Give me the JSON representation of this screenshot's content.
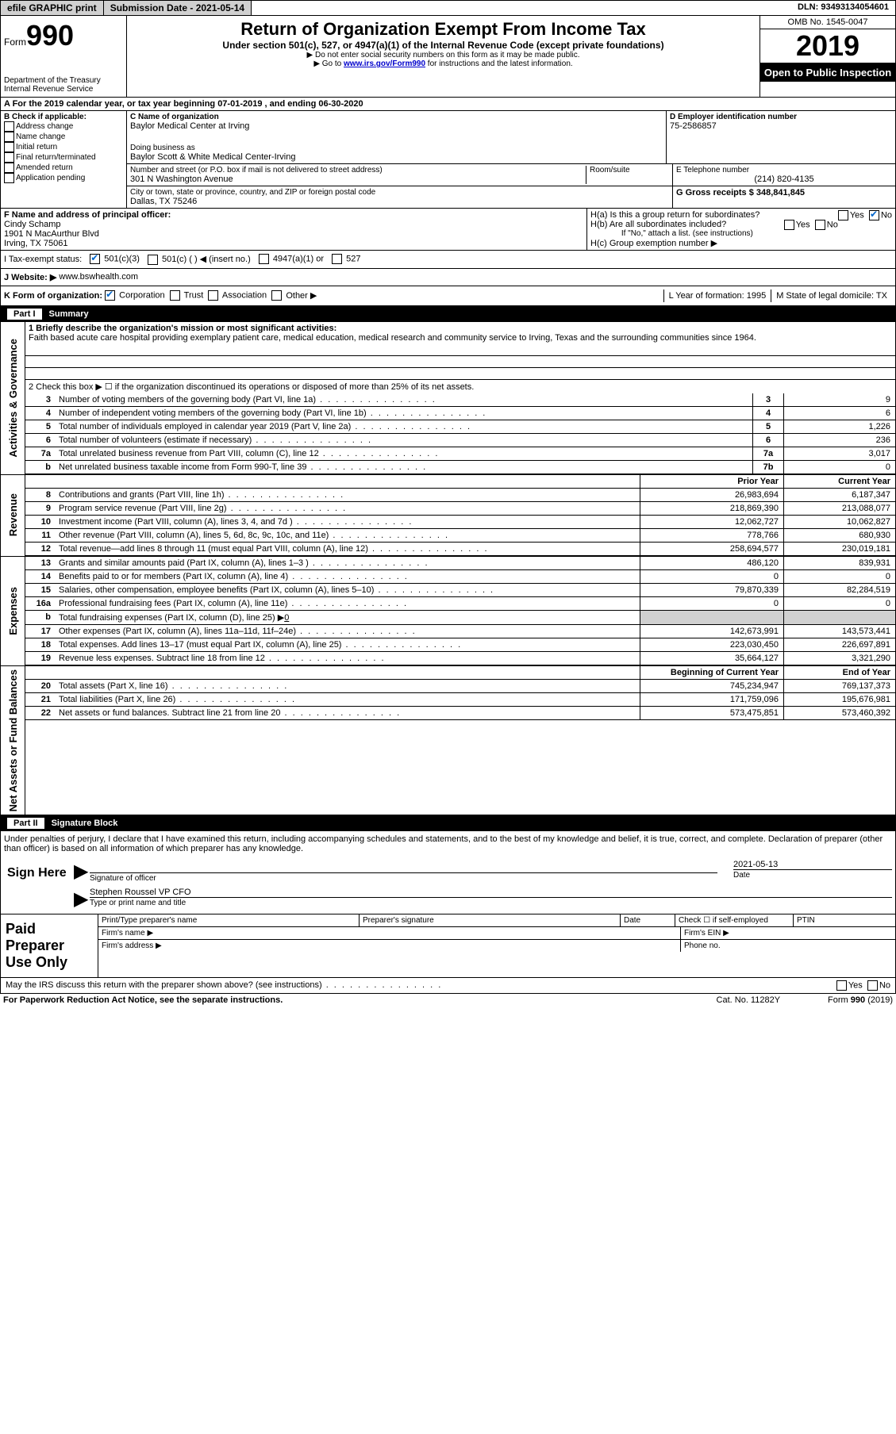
{
  "topbar": {
    "efile": "efile GRAPHIC print",
    "submission": "Submission Date - 2021-05-14",
    "dln": "DLN: 93493134054601"
  },
  "header": {
    "form_label": "Form",
    "form_number": "990",
    "dept1": "Department of the Treasury",
    "dept2": "Internal Revenue Service",
    "title": "Return of Organization Exempt From Income Tax",
    "subtitle": "Under section 501(c), 527, or 4947(a)(1) of the Internal Revenue Code (except private foundations)",
    "note1": "▶ Do not enter social security numbers on this form as it may be made public.",
    "note2_pre": "▶ Go to ",
    "note2_link": "www.irs.gov/Form990",
    "note2_post": " for instructions and the latest information.",
    "omb": "OMB No. 1545-0047",
    "year": "2019",
    "open": "Open to Public Inspection"
  },
  "line_a": "A For the 2019 calendar year, or tax year beginning 07-01-2019    , and ending 06-30-2020",
  "col_b": {
    "label": "B Check if applicable:",
    "items": [
      "Address change",
      "Name change",
      "Initial return",
      "Final return/terminated",
      "Amended return",
      "Application pending"
    ]
  },
  "col_c": {
    "label_c": "C Name of organization",
    "org_name": "Baylor Medical Center at Irving",
    "dba_label": "Doing business as",
    "dba": "Baylor Scott & White Medical Center-Irving",
    "addr_label": "Number and street (or P.O. box if mail is not delivered to street address)",
    "room_label": "Room/suite",
    "street": "301 N Washington Avenue",
    "city_label": "City or town, state or province, country, and ZIP or foreign postal code",
    "city": "Dallas, TX  75246"
  },
  "col_d": {
    "label": "D Employer identification number",
    "ein": "75-2586857"
  },
  "col_e": {
    "label": "E Telephone number",
    "phone": "(214) 820-4135"
  },
  "col_g": {
    "label": "G Gross receipts $ 348,841,845"
  },
  "col_f": {
    "label": "F  Name and address of principal officer:",
    "name": "Cindy Schamp",
    "addr1": "1901 N MacAurthur Blvd",
    "addr2": "Irving, TX  75061"
  },
  "col_h": {
    "ha": "H(a)  Is this a group return for subordinates?",
    "hb": "H(b)  Are all subordinates included?",
    "hb_note": "If \"No,\" attach a list. (see instructions)",
    "hc": "H(c)  Group exemption number ▶",
    "yes": "Yes",
    "no": "No"
  },
  "tax_status": {
    "label": "I   Tax-exempt status:",
    "opt1": "501(c)(3)",
    "opt2": "501(c) (  ) ◀ (insert no.)",
    "opt3": "4947(a)(1) or",
    "opt4": "527"
  },
  "website": {
    "label": "J   Website: ▶",
    "url": "www.bswhealth.com"
  },
  "korg": {
    "label": "K Form of organization:",
    "opts": [
      "Corporation",
      "Trust",
      "Association",
      "Other ▶"
    ],
    "l_label": "L Year of formation: 1995",
    "m_label": "M State of legal domicile: TX"
  },
  "part1": {
    "title": "Part I",
    "name": "Summary",
    "line1_label": "1  Briefly describe the organization's mission or most significant activities:",
    "mission": "Faith based acute care hospital providing exemplary patient care, medical education, medical research and community service to Irving, Texas and the surrounding communities since 1964.",
    "line2": "2    Check this box ▶ ☐  if the organization discontinued its operations or disposed of more than 25% of its net assets.",
    "sidebar_act": "Activities & Governance",
    "sidebar_rev": "Revenue",
    "sidebar_exp": "Expenses",
    "sidebar_net": "Net Assets or Fund Balances"
  },
  "gov_rows": [
    {
      "n": "3",
      "t": "Number of voting members of the governing body (Part VI, line 1a)",
      "box": "3",
      "v": "9"
    },
    {
      "n": "4",
      "t": "Number of independent voting members of the governing body (Part VI, line 1b)",
      "box": "4",
      "v": "6"
    },
    {
      "n": "5",
      "t": "Total number of individuals employed in calendar year 2019 (Part V, line 2a)",
      "box": "5",
      "v": "1,226"
    },
    {
      "n": "6",
      "t": "Total number of volunteers (estimate if necessary)",
      "box": "6",
      "v": "236"
    },
    {
      "n": "7a",
      "t": "Total unrelated business revenue from Part VIII, column (C), line 12",
      "box": "7a",
      "v": "3,017"
    },
    {
      "n": "b",
      "t": "Net unrelated business taxable income from Form 990-T, line 39",
      "box": "7b",
      "v": "0"
    }
  ],
  "col_headers": {
    "prior": "Prior Year",
    "current": "Current Year"
  },
  "rev_rows": [
    {
      "n": "8",
      "t": "Contributions and grants (Part VIII, line 1h)",
      "py": "26,983,694",
      "cy": "6,187,347"
    },
    {
      "n": "9",
      "t": "Program service revenue (Part VIII, line 2g)",
      "py": "218,869,390",
      "cy": "213,088,077"
    },
    {
      "n": "10",
      "t": "Investment income (Part VIII, column (A), lines 3, 4, and 7d )",
      "py": "12,062,727",
      "cy": "10,062,827"
    },
    {
      "n": "11",
      "t": "Other revenue (Part VIII, column (A), lines 5, 6d, 8c, 9c, 10c, and 11e)",
      "py": "778,766",
      "cy": "680,930"
    },
    {
      "n": "12",
      "t": "Total revenue—add lines 8 through 11 (must equal Part VIII, column (A), line 12)",
      "py": "258,694,577",
      "cy": "230,019,181"
    }
  ],
  "exp_rows": [
    {
      "n": "13",
      "t": "Grants and similar amounts paid (Part IX, column (A), lines 1–3 )",
      "py": "486,120",
      "cy": "839,931"
    },
    {
      "n": "14",
      "t": "Benefits paid to or for members (Part IX, column (A), line 4)",
      "py": "0",
      "cy": "0"
    },
    {
      "n": "15",
      "t": "Salaries, other compensation, employee benefits (Part IX, column (A), lines 5–10)",
      "py": "79,870,339",
      "cy": "82,284,519"
    },
    {
      "n": "16a",
      "t": "Professional fundraising fees (Part IX, column (A), line 11e)",
      "py": "0",
      "cy": "0"
    }
  ],
  "line16b": {
    "n": "b",
    "t": "Total fundraising expenses (Part IX, column (D), line 25) ▶",
    "v": "0"
  },
  "exp_rows2": [
    {
      "n": "17",
      "t": "Other expenses (Part IX, column (A), lines 11a–11d, 11f–24e)",
      "py": "142,673,991",
      "cy": "143,573,441"
    },
    {
      "n": "18",
      "t": "Total expenses. Add lines 13–17 (must equal Part IX, column (A), line 25)",
      "py": "223,030,450",
      "cy": "226,697,891"
    },
    {
      "n": "19",
      "t": "Revenue less expenses. Subtract line 18 from line 12",
      "py": "35,664,127",
      "cy": "3,321,290"
    }
  ],
  "net_headers": {
    "begin": "Beginning of Current Year",
    "end": "End of Year"
  },
  "net_rows": [
    {
      "n": "20",
      "t": "Total assets (Part X, line 16)",
      "py": "745,234,947",
      "cy": "769,137,373"
    },
    {
      "n": "21",
      "t": "Total liabilities (Part X, line 26)",
      "py": "171,759,096",
      "cy": "195,676,981"
    },
    {
      "n": "22",
      "t": "Net assets or fund balances. Subtract line 21 from line 20",
      "py": "573,475,851",
      "cy": "573,460,392"
    }
  ],
  "part2": {
    "title": "Part II",
    "name": "Signature Block",
    "penalties": "Under penalties of perjury, I declare that I have examined this return, including accompanying schedules and statements, and to the best of my knowledge and belief, it is true, correct, and complete. Declaration of preparer (other than officer) is based on all information of which preparer has any knowledge."
  },
  "sign": {
    "here": "Sign Here",
    "sig_officer": "Signature of officer",
    "date_label": "Date",
    "date": "2021-05-13",
    "name": "Stephen Roussel VP CFO",
    "type_label": "Type or print name and title"
  },
  "preparer": {
    "label": "Paid Preparer Use Only",
    "print_name": "Print/Type preparer's name",
    "prep_sig": "Preparer's signature",
    "date": "Date",
    "check_self": "Check ☐ if self-employed",
    "ptin": "PTIN",
    "firm_name": "Firm's name   ▶",
    "firm_ein": "Firm's EIN ▶",
    "firm_addr": "Firm's address ▶",
    "phone": "Phone no."
  },
  "footer": {
    "discuss": "May the IRS discuss this return with the preparer shown above? (see instructions)",
    "yes": "Yes",
    "no": "No",
    "paperwork": "For Paperwork Reduction Act Notice, see the separate instructions.",
    "cat": "Cat. No. 11282Y",
    "form": "Form 990 (2019)"
  }
}
